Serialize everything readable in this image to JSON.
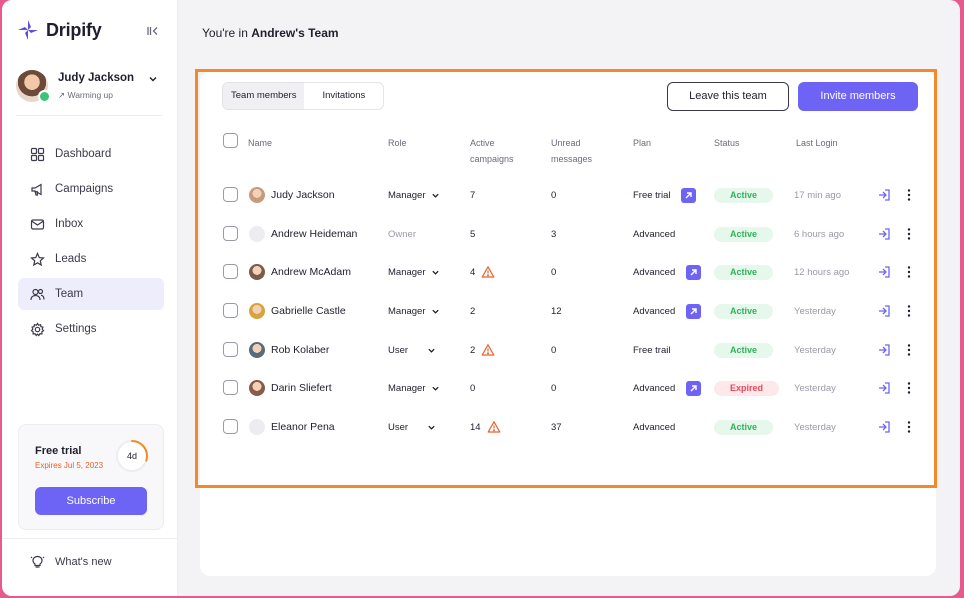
{
  "app": {
    "name": "Dripify"
  },
  "user": {
    "name": "Judy Jackson",
    "status": "Warming up"
  },
  "nav": [
    {
      "label": "Dashboard",
      "icon": "dashboard-icon"
    },
    {
      "label": "Campaigns",
      "icon": "megaphone-icon"
    },
    {
      "label": "Inbox",
      "icon": "mail-icon"
    },
    {
      "label": "Leads",
      "icon": "star-icon"
    },
    {
      "label": "Team",
      "icon": "users-icon",
      "active": true
    },
    {
      "label": "Settings",
      "icon": "gear-icon"
    }
  ],
  "trial": {
    "title": "Free trial",
    "expires": "Expires Jul 5, 2023",
    "days_left": "4d",
    "days_left_fraction": 0.3,
    "subscribe_label": "Subscribe"
  },
  "whats_new": "What's new",
  "breadcrumb": {
    "prefix": "You're in",
    "team": "Andrew's Team"
  },
  "tabs": [
    {
      "label": "Team members",
      "active": true
    },
    {
      "label": "Invitations"
    }
  ],
  "actions": {
    "leave": "Leave this team",
    "invite": "Invite members"
  },
  "table": {
    "headers": {
      "name": "Name",
      "role": "Role",
      "active_campaigns": [
        "Active",
        "campaigns"
      ],
      "unread_messages": [
        "Unread",
        "messages"
      ],
      "plan": "Plan",
      "status": "Status",
      "last_login": "Last Login"
    },
    "rows": [
      {
        "name": "Judy Jackson",
        "role": "Manager",
        "role_dropdown": true,
        "campaigns": "7",
        "warning": false,
        "unread": "0",
        "plan": "Free trial",
        "upgrade": true,
        "status": "Active",
        "last_login": "17 min ago",
        "avatar": "photo"
      },
      {
        "name": "Andrew Heideman",
        "role": "Owner",
        "role_dropdown": false,
        "campaigns": "5",
        "warning": false,
        "unread": "3",
        "plan": "Advanced",
        "upgrade": false,
        "status": "Active",
        "last_login": "6 hours ago",
        "avatar": "placeholder"
      },
      {
        "name": "Andrew McAdam",
        "role": "Manager",
        "role_dropdown": true,
        "campaigns": "4",
        "warning": true,
        "unread": "0",
        "plan": "Advanced",
        "upgrade": true,
        "status": "Active",
        "last_login": "12 hours ago",
        "avatar": "photo"
      },
      {
        "name": "Gabrielle Castle",
        "role": "Manager",
        "role_dropdown": true,
        "campaigns": "2",
        "warning": false,
        "unread": "12",
        "plan": "Advanced",
        "upgrade": true,
        "status": "Active",
        "last_login": "Yesterday",
        "avatar": "photo"
      },
      {
        "name": "Rob Kolaber",
        "role": "User",
        "role_dropdown": true,
        "campaigns": "2",
        "warning": true,
        "unread": "0",
        "plan": "Free trail",
        "upgrade": false,
        "status": "Active",
        "last_login": "Yesterday",
        "avatar": "photo"
      },
      {
        "name": "Darin Sliefert",
        "role": "Manager",
        "role_dropdown": true,
        "campaigns": "0",
        "warning": false,
        "unread": "0",
        "plan": "Advanced",
        "upgrade": true,
        "status": "Expired",
        "last_login": "Yesterday",
        "avatar": "photo"
      },
      {
        "name": "Eleanor Pena",
        "role": "User",
        "role_dropdown": true,
        "campaigns": "14",
        "warning": true,
        "unread": "37",
        "plan": "Advanced",
        "upgrade": false,
        "status": "Active",
        "last_login": "Yesterday",
        "avatar": "placeholder"
      }
    ]
  },
  "colors": {
    "accent": "#6d63f5",
    "highlight": "#f28a2a",
    "active_status": "#2fb35c",
    "expired_status": "#e34b5c",
    "warning": "#e8602c"
  }
}
